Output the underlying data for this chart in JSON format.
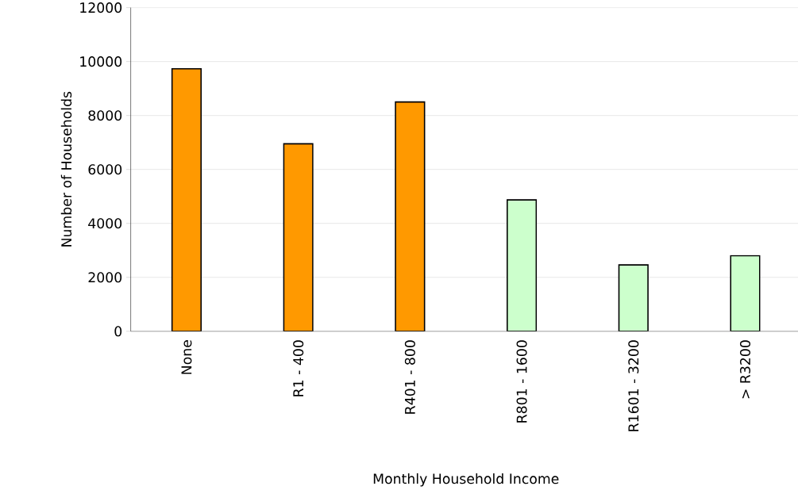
{
  "chart_data": {
    "type": "bar",
    "xlabel": "Monthly Household Income",
    "ylabel": "Number of Households",
    "categories": [
      "None",
      "R1 - 400",
      "R401 - 800",
      "R801 - 1600",
      "R1601 - 3200",
      "> R3200"
    ],
    "values": [
      9730,
      6950,
      8500,
      4870,
      2460,
      2800
    ],
    "colors": [
      "#ff9900",
      "#ff9900",
      "#ff9900",
      "#ccffcc",
      "#ccffcc",
      "#ccffcc"
    ],
    "ylim": [
      0,
      12000
    ],
    "yticks": [
      0,
      2000,
      4000,
      6000,
      8000,
      10000,
      12000
    ],
    "grid": "y"
  }
}
